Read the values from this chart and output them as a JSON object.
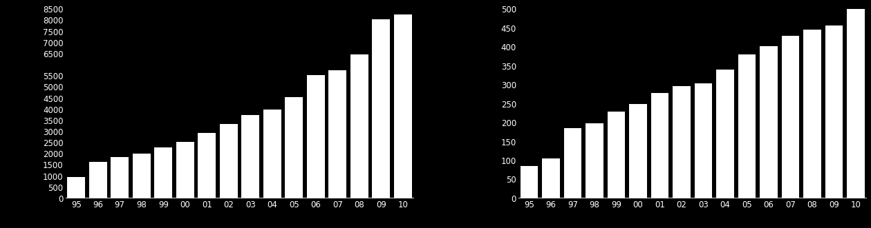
{
  "categories": [
    "95",
    "96",
    "97",
    "98",
    "99",
    "00",
    "01",
    "02",
    "03",
    "04",
    "05",
    "06",
    "07",
    "08",
    "09",
    "10"
  ],
  "left_values": [
    950,
    1650,
    1850,
    2000,
    2300,
    2550,
    2950,
    3350,
    3750,
    4000,
    4550,
    5550,
    5750,
    6450,
    8050,
    8250
  ],
  "right_values": [
    85,
    105,
    185,
    198,
    230,
    250,
    278,
    297,
    303,
    340,
    380,
    402,
    430,
    445,
    457,
    500
  ],
  "left_ylim": [
    0,
    8500
  ],
  "right_ylim": [
    0,
    500
  ],
  "left_yticks": [
    0,
    500,
    1000,
    1500,
    2000,
    2500,
    3000,
    3500,
    4000,
    4500,
    5000,
    5500,
    6500,
    7000,
    7500,
    8000,
    8500
  ],
  "right_yticks": [
    0,
    50,
    100,
    150,
    200,
    250,
    300,
    350,
    400,
    450,
    500
  ],
  "bar_color": "#ffffff",
  "background_color": "#000000",
  "text_color": "#ffffff",
  "tick_fontsize": 8.5,
  "bar_width": 0.82
}
